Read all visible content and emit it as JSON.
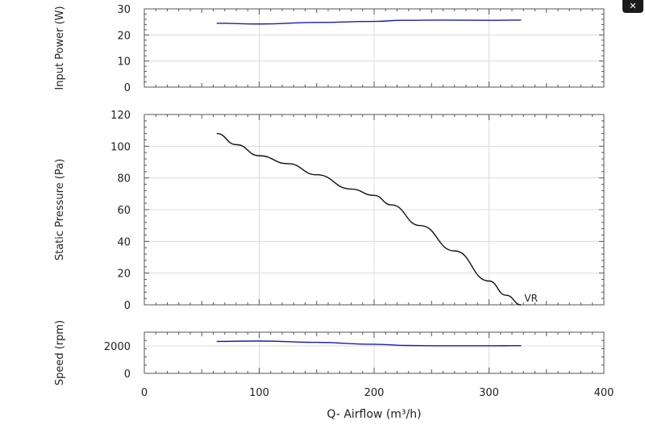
{
  "window": {
    "close_label": "✕"
  },
  "chart_data": [
    {
      "type": "line",
      "ylabel": "Input Power (W)",
      "xlim": [
        0,
        400
      ],
      "ylim": [
        0,
        30
      ],
      "yticks": [
        "0",
        "10",
        "20",
        "30"
      ],
      "grid": true,
      "series": [
        {
          "color": "#1a1ab4",
          "x": [
            63,
            100,
            150,
            200,
            225,
            260,
            300,
            328
          ],
          "y": [
            24.5,
            24.2,
            24.8,
            25.2,
            25.6,
            25.7,
            25.6,
            25.7
          ]
        }
      ]
    },
    {
      "type": "line",
      "ylabel": "Static Pressure (Pa)",
      "xlim": [
        0,
        400
      ],
      "ylim": [
        0,
        120
      ],
      "yticks": [
        "0",
        "20",
        "40",
        "60",
        "80",
        "100",
        "120"
      ],
      "grid": true,
      "series": [
        {
          "name": "VR",
          "color": "#111111",
          "x": [
            63,
            80,
            100,
            125,
            150,
            180,
            200,
            215,
            240,
            270,
            300,
            315,
            328
          ],
          "y": [
            108,
            101,
            94,
            89,
            82,
            73,
            69,
            63,
            50,
            34,
            15,
            6,
            0
          ]
        }
      ]
    },
    {
      "type": "line",
      "ylabel": "Speed (rpm)",
      "xlabel": "Q- Airflow (m³/h)",
      "xlim": [
        0,
        400
      ],
      "ylim": [
        0,
        3000
      ],
      "yticks": [
        "0",
        "2000"
      ],
      "xticks": [
        "0",
        "100",
        "200",
        "300",
        "400"
      ],
      "grid": true,
      "series": [
        {
          "color": "#1a1ab4",
          "x": [
            63,
            100,
            150,
            200,
            230,
            260,
            300,
            328
          ],
          "y": [
            2330,
            2360,
            2260,
            2120,
            2030,
            2010,
            2010,
            2020
          ]
        }
      ]
    }
  ]
}
